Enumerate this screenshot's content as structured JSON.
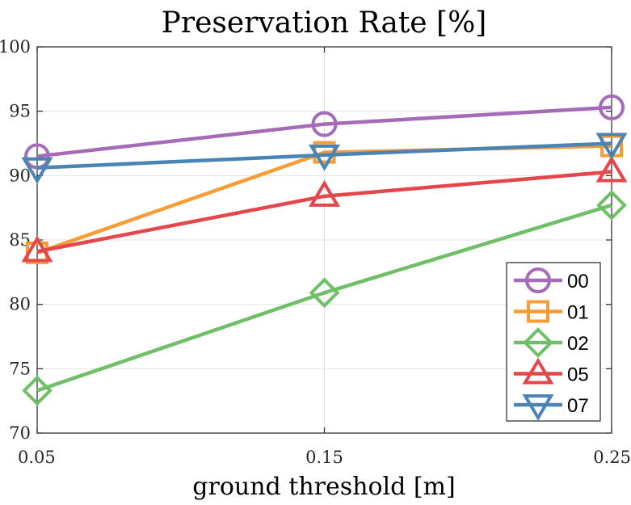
{
  "chart_data": {
    "type": "line",
    "title": "Preservation Rate [%]",
    "xlabel": "ground threshold [m]",
    "ylabel": "",
    "x": [
      0.05,
      0.15,
      0.25
    ],
    "x_tick_labels": [
      "0.05",
      "0.15",
      "0.25"
    ],
    "xlim": [
      0.05,
      0.25
    ],
    "ylim": [
      70,
      100
    ],
    "y_ticks": [
      70,
      75,
      80,
      85,
      90,
      95,
      100
    ],
    "grid": true,
    "legend_position": "bottom-right",
    "series": [
      {
        "name": "00",
        "values": [
          91.5,
          94.0,
          95.3
        ],
        "color": "#a66bb8",
        "marker": "circle"
      },
      {
        "name": "01",
        "values": [
          84.0,
          91.8,
          92.3
        ],
        "color": "#f89c35",
        "marker": "square"
      },
      {
        "name": "02",
        "values": [
          73.3,
          80.9,
          87.7
        ],
        "color": "#6ebf67",
        "marker": "diamond"
      },
      {
        "name": "05",
        "values": [
          84.1,
          88.4,
          90.3
        ],
        "color": "#e4474b",
        "marker": "triangle-up"
      },
      {
        "name": "07",
        "values": [
          90.6,
          91.6,
          92.5
        ],
        "color": "#4a84b5",
        "marker": "triangle-down"
      }
    ]
  }
}
